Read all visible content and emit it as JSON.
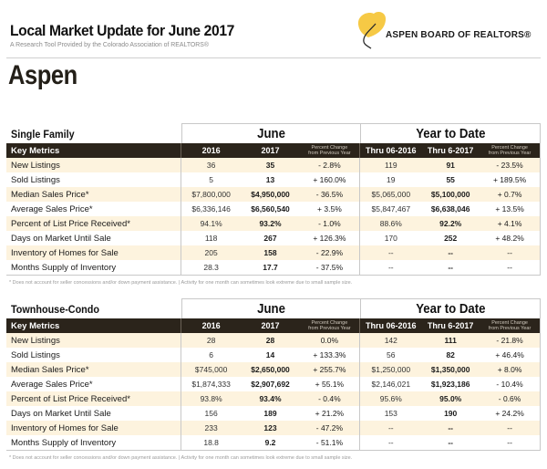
{
  "header": {
    "title": "Local Market Update for June 2017",
    "subtitle": "A Research Tool Provided by the Colorado Association of REALTORS®",
    "logo_text": "ASPEN BOARD OF REALTORS®",
    "logo_icon": "aspen-leaf-icon",
    "city": "Aspen"
  },
  "colors": {
    "header_row_bg": "#2b241b",
    "alt_row_bg": "#fdf3de",
    "leaf_yellow": "#f6c945"
  },
  "columns": {
    "key_metrics": "Key Metrics",
    "june_group": "June",
    "ytd_group": "Year to Date",
    "y2016": "2016",
    "y2017": "2017",
    "pct_line1": "Percent Change",
    "pct_line2": "from Previous Year",
    "thru2016": "Thru 06-2016",
    "thru2017": "Thru 6-2017"
  },
  "footnote": "* Does not account for seller concessions and/or down payment assistance.  |  Activity for one month can sometimes look extreme due to small sample size.",
  "single_family": {
    "title": "Single Family",
    "rows": [
      [
        "New Listings",
        "36",
        "35",
        "- 2.8%",
        "119",
        "91",
        "- 23.5%"
      ],
      [
        "Sold Listings",
        "5",
        "13",
        "+ 160.0%",
        "19",
        "55",
        "+ 189.5%"
      ],
      [
        "Median Sales Price*",
        "$7,800,000",
        "$4,950,000",
        "- 36.5%",
        "$5,065,000",
        "$5,100,000",
        "+ 0.7%"
      ],
      [
        "Average Sales Price*",
        "$6,336,146",
        "$6,560,540",
        "+ 3.5%",
        "$5,847,467",
        "$6,638,046",
        "+ 13.5%"
      ],
      [
        "Percent of List Price Received*",
        "94.1%",
        "93.2%",
        "- 1.0%",
        "88.6%",
        "92.2%",
        "+ 4.1%"
      ],
      [
        "Days on Market Until Sale",
        "118",
        "267",
        "+ 126.3%",
        "170",
        "252",
        "+ 48.2%"
      ],
      [
        "Inventory of Homes for Sale",
        "205",
        "158",
        "- 22.9%",
        "--",
        "--",
        "--"
      ],
      [
        "Months Supply of Inventory",
        "28.3",
        "17.7",
        "- 37.5%",
        "--",
        "--",
        "--"
      ]
    ]
  },
  "townhouse_condo": {
    "title": "Townhouse-Condo",
    "rows": [
      [
        "New Listings",
        "28",
        "28",
        "0.0%",
        "142",
        "111",
        "- 21.8%"
      ],
      [
        "Sold Listings",
        "6",
        "14",
        "+ 133.3%",
        "56",
        "82",
        "+ 46.4%"
      ],
      [
        "Median Sales Price*",
        "$745,000",
        "$2,650,000",
        "+ 255.7%",
        "$1,250,000",
        "$1,350,000",
        "+ 8.0%"
      ],
      [
        "Average Sales Price*",
        "$1,874,333",
        "$2,907,692",
        "+ 55.1%",
        "$2,146,021",
        "$1,923,186",
        "- 10.4%"
      ],
      [
        "Percent of List Price Received*",
        "93.8%",
        "93.4%",
        "- 0.4%",
        "95.6%",
        "95.0%",
        "- 0.6%"
      ],
      [
        "Days on Market Until Sale",
        "156",
        "189",
        "+ 21.2%",
        "153",
        "190",
        "+ 24.2%"
      ],
      [
        "Inventory of Homes for Sale",
        "233",
        "123",
        "- 47.2%",
        "--",
        "--",
        "--"
      ],
      [
        "Months Supply of Inventory",
        "18.8",
        "9.2",
        "- 51.1%",
        "--",
        "--",
        "--"
      ]
    ]
  }
}
